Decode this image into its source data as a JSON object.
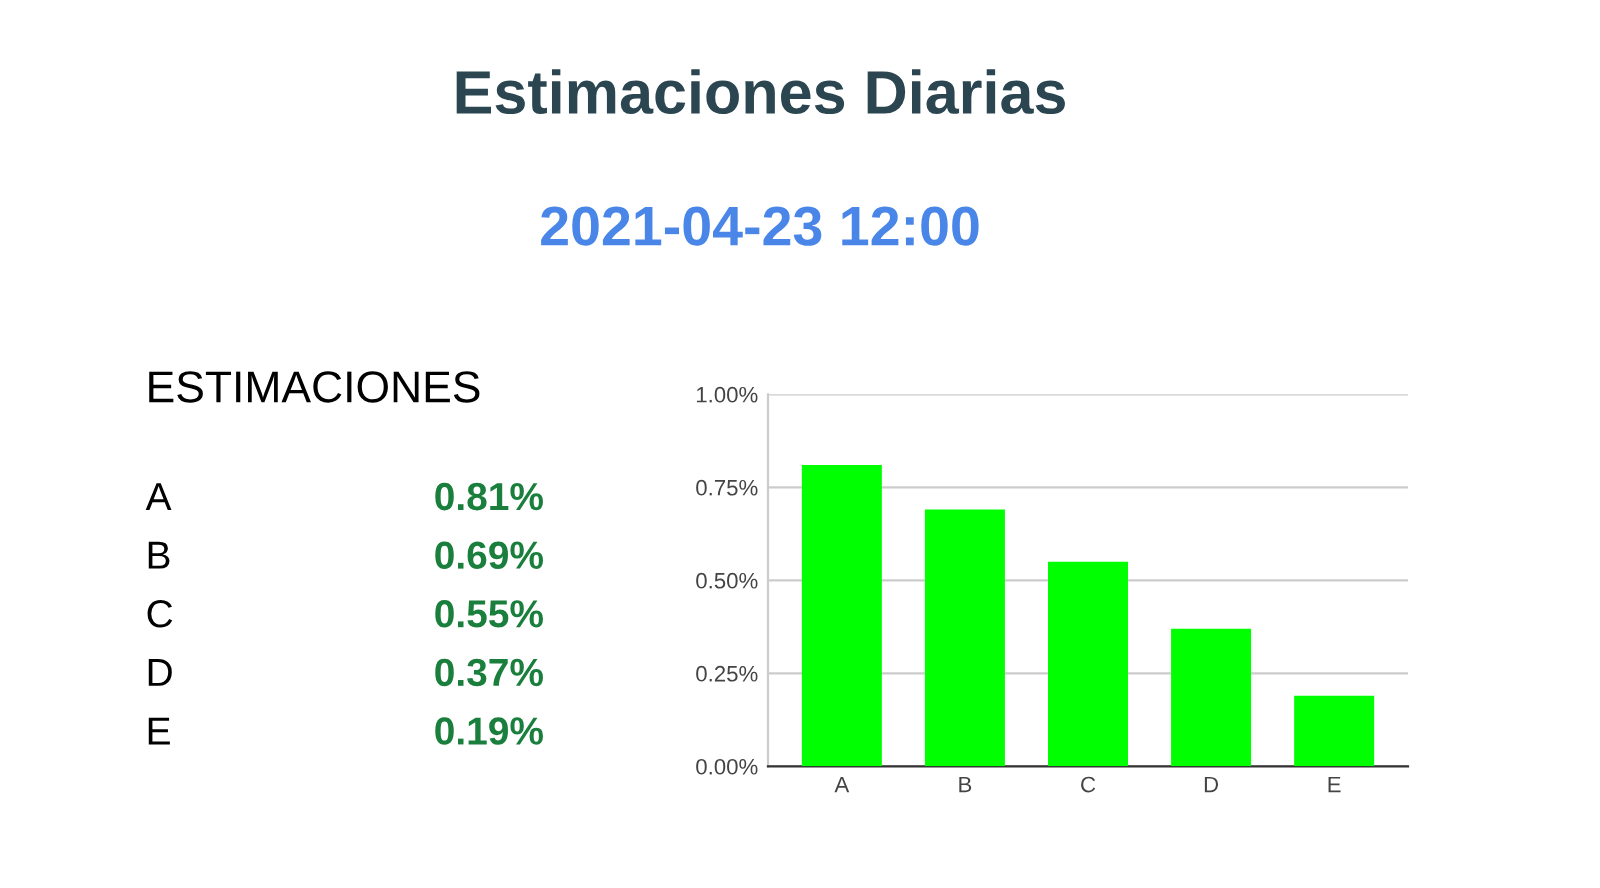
{
  "chart_data": [
    {
      "type": "other",
      "title": "Estimaciones Diarias",
      "subtitle": "2021-04-23 12:00",
      "annotations": [
        "ESTIMACIONES",
        "A",
        "0.81%",
        "B",
        "0.69%",
        "C",
        "0.55%",
        "D",
        "0.37%",
        "E",
        "0.19%"
      ]
    },
    {
      "type": "bar",
      "categories": [
        "A",
        "B",
        "C",
        "D",
        "E"
      ],
      "values": [
        0.81,
        0.69,
        0.55,
        0.37,
        0.19
      ],
      "color": "#00ff00",
      "ylim": [
        0,
        1
      ],
      "yticks": [
        {
          "value": 0,
          "label": "0.00%"
        },
        {
          "value": 0.25,
          "label": "0.25%"
        },
        {
          "value": 0.5,
          "label": "0.50%"
        },
        {
          "value": 0.75,
          "label": "0.75%"
        },
        {
          "value": 1,
          "label": "1.00%"
        }
      ],
      "grid": "y"
    }
  ]
}
